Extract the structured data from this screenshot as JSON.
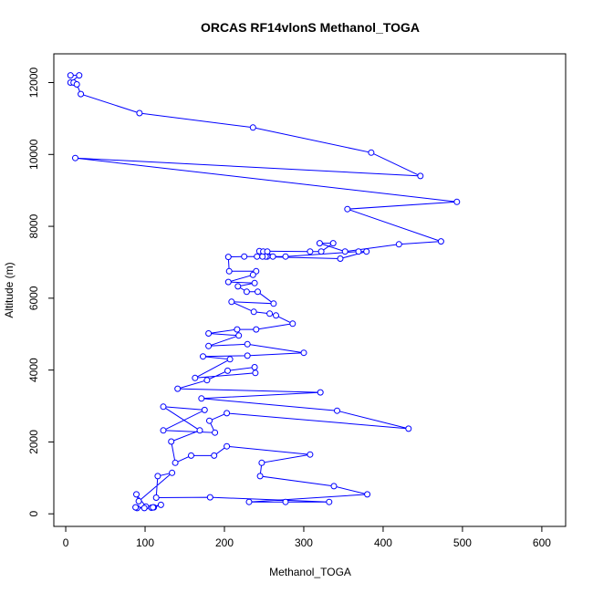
{
  "chart_data": {
    "type": "line",
    "title": "ORCAS RF14vlonS Methanol_TOGA",
    "xlabel": "Methanol_TOGA",
    "ylabel": "Altitude (m)",
    "xlim": [
      -15,
      630
    ],
    "ylim": [
      -350,
      12800
    ],
    "xticks": [
      0,
      100,
      200,
      300,
      400,
      500,
      600
    ],
    "yticks": [
      0,
      2000,
      4000,
      6000,
      8000,
      10000,
      12000
    ],
    "grid": false,
    "marker": "open-circle",
    "color": "#0000ff",
    "series": [
      {
        "points": [
          [
            6,
            12200
          ],
          [
            17,
            12200
          ],
          [
            6,
            12000
          ],
          [
            10,
            12000
          ],
          [
            14,
            11950
          ],
          [
            19,
            11680
          ],
          [
            93,
            11150
          ],
          [
            236,
            10750
          ],
          [
            385,
            10050
          ],
          [
            447,
            9400
          ],
          [
            12,
            9900
          ],
          [
            493,
            8680
          ],
          [
            355,
            8480
          ],
          [
            473,
            7580
          ],
          [
            420,
            7500
          ],
          [
            352,
            7300
          ],
          [
            320,
            7530
          ],
          [
            337,
            7530
          ],
          [
            322,
            7300
          ],
          [
            308,
            7300
          ],
          [
            244,
            7310
          ],
          [
            249,
            7300
          ],
          [
            254,
            7300
          ],
          [
            261,
            7160
          ],
          [
            254,
            7160
          ],
          [
            252,
            7160
          ],
          [
            248,
            7160
          ],
          [
            277,
            7160
          ],
          [
            369,
            7300
          ],
          [
            379,
            7300
          ],
          [
            346,
            7100
          ],
          [
            241,
            7160
          ],
          [
            225,
            7160
          ],
          [
            205,
            7150
          ],
          [
            206,
            6750
          ],
          [
            240,
            6750
          ],
          [
            236,
            6650
          ],
          [
            205,
            6450
          ],
          [
            238,
            6420
          ],
          [
            217,
            6330
          ],
          [
            228,
            6180
          ],
          [
            242,
            6180
          ],
          [
            262,
            5850
          ],
          [
            209,
            5900
          ],
          [
            237,
            5620
          ],
          [
            257,
            5570
          ],
          [
            265,
            5520
          ],
          [
            286,
            5290
          ],
          [
            240,
            5130
          ],
          [
            216,
            5130
          ],
          [
            180,
            5020
          ],
          [
            218,
            4960
          ],
          [
            180,
            4670
          ],
          [
            229,
            4720
          ],
          [
            300,
            4480
          ],
          [
            229,
            4400
          ],
          [
            173,
            4380
          ],
          [
            207,
            4300
          ],
          [
            163,
            3780
          ],
          [
            239,
            3920
          ],
          [
            238,
            4080
          ],
          [
            204,
            3980
          ],
          [
            178,
            3720
          ],
          [
            141,
            3480
          ],
          [
            321,
            3380
          ],
          [
            171,
            3210
          ],
          [
            342,
            2870
          ],
          [
            432,
            2370
          ],
          [
            203,
            2800
          ],
          [
            181,
            2590
          ],
          [
            188,
            2260
          ],
          [
            123,
            2320
          ],
          [
            175,
            2890
          ],
          [
            123,
            2980
          ],
          [
            169,
            2320
          ],
          [
            133,
            2010
          ],
          [
            138,
            1420
          ],
          [
            158,
            1620
          ],
          [
            187,
            1620
          ],
          [
            203,
            1880
          ],
          [
            308,
            1650
          ],
          [
            247,
            1420
          ],
          [
            245,
            1050
          ],
          [
            338,
            770
          ],
          [
            380,
            540
          ],
          [
            231,
            330
          ],
          [
            277,
            330
          ],
          [
            332,
            330
          ],
          [
            182,
            460
          ],
          [
            114,
            450
          ],
          [
            116,
            1050
          ],
          [
            134,
            1140
          ],
          [
            92,
            350
          ],
          [
            89,
            540
          ],
          [
            101,
            200
          ],
          [
            111,
            180
          ],
          [
            120,
            250
          ],
          [
            99,
            160
          ],
          [
            90,
            160
          ],
          [
            88,
            180
          ],
          [
            108,
            170
          ],
          [
            110,
            180
          ]
        ]
      }
    ]
  }
}
